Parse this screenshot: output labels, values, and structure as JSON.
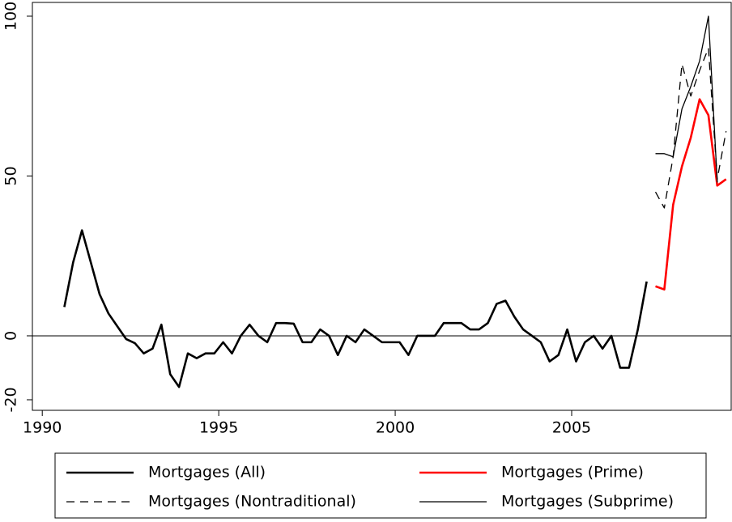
{
  "chart_data": {
    "type": "line",
    "xlim": [
      1989.72,
      2009.52
    ],
    "ylim": [
      -23.3,
      104.3
    ],
    "xticks": [
      1990,
      1995,
      2000,
      2005
    ],
    "yticks": [
      -20,
      0,
      50,
      100
    ],
    "hline": 0,
    "series": [
      {
        "name": "Mortgages (All)",
        "color": "#000000",
        "width": 2.6,
        "dash": false,
        "x": [
          1990.625,
          1990.875,
          1991.125,
          1991.375,
          1991.625,
          1991.875,
          1992.125,
          1992.375,
          1992.625,
          1992.875,
          1993.125,
          1993.375,
          1993.625,
          1993.875,
          1994.125,
          1994.375,
          1994.625,
          1994.875,
          1995.125,
          1995.375,
          1995.625,
          1995.875,
          1996.125,
          1996.375,
          1996.625,
          1996.875,
          1997.125,
          1997.375,
          1997.625,
          1997.875,
          1998.125,
          1998.375,
          1998.625,
          1998.875,
          1999.125,
          1999.375,
          1999.625,
          1999.875,
          2000.125,
          2000.375,
          2000.625,
          2000.875,
          2001.125,
          2001.375,
          2001.625,
          2001.875,
          2002.125,
          2002.375,
          2002.625,
          2002.875,
          2003.125,
          2003.375,
          2003.625,
          2003.875,
          2004.125,
          2004.375,
          2004.625,
          2004.875,
          2005.125,
          2005.375,
          2005.625,
          2005.875,
          2006.125,
          2006.375,
          2006.625,
          2006.875,
          2007.125
        ],
        "values": [
          9,
          23,
          33,
          23,
          13,
          7,
          3,
          -1,
          -2.3,
          -5.5,
          -4,
          3.5,
          -12,
          -16,
          -5.5,
          -7,
          -5.5,
          -5.5,
          -2,
          -5.5,
          0,
          3.5,
          0,
          -2,
          4,
          4,
          3.8,
          -2,
          -2,
          2,
          0,
          -6,
          0,
          -2,
          2,
          0,
          -2,
          -2,
          -2,
          -6,
          0,
          0,
          0,
          4,
          4,
          4,
          2,
          2,
          4,
          10,
          11,
          6,
          2,
          0,
          -2,
          -8,
          -6,
          2,
          -8,
          -2,
          0,
          -4,
          0,
          -10,
          -10,
          2,
          17
        ]
      },
      {
        "name": "Mortgages (Prime)",
        "color": "#ff0000",
        "width": 2.6,
        "dash": false,
        "x": [
          2007.375,
          2007.625,
          2007.875,
          2008.125,
          2008.375,
          2008.625,
          2008.875,
          2009.125,
          2009.375
        ],
        "values": [
          15.5,
          14.5,
          41,
          53,
          62,
          74,
          69,
          47,
          49
        ]
      },
      {
        "name": "Mortgages (Nontraditional)",
        "color": "#000000",
        "width": 1.3,
        "dash": true,
        "x": [
          2007.375,
          2007.625,
          2007.875,
          2008.125,
          2008.375,
          2008.625,
          2008.875,
          2009.125,
          2009.375
        ],
        "values": [
          45,
          40,
          56,
          85,
          75,
          83,
          90,
          49,
          64
        ]
      },
      {
        "name": "Mortgages (Subprime)",
        "color": "#000000",
        "width": 1.3,
        "dash": false,
        "x": [
          2007.375,
          2007.625,
          2007.875,
          2008.125,
          2008.375,
          2008.625,
          2008.875,
          2009.125
        ],
        "values": [
          57,
          57,
          56,
          71,
          78,
          86,
          100,
          48
        ]
      }
    ]
  }
}
